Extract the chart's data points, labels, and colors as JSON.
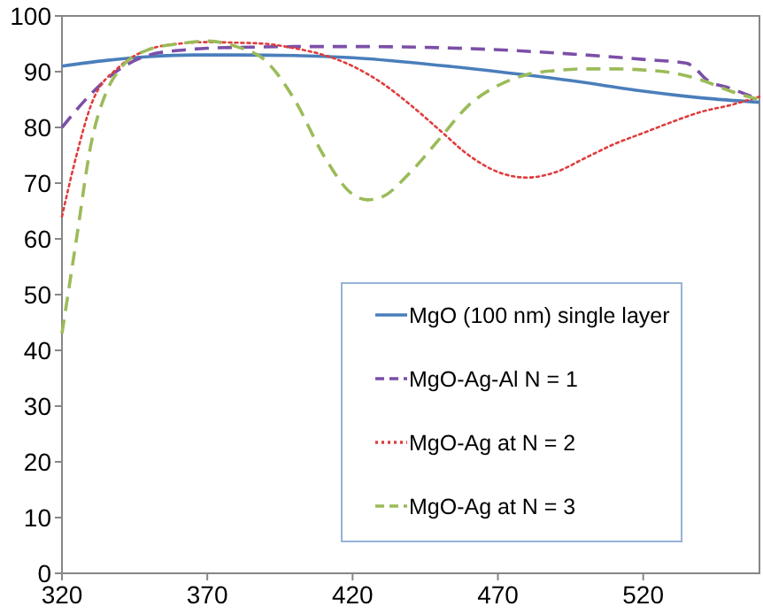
{
  "chart_data": {
    "type": "line",
    "xlim": [
      320,
      560
    ],
    "xticks": [
      320,
      370,
      420,
      470,
      520
    ],
    "ylim": [
      0,
      100
    ],
    "yticks": [
      0,
      10,
      20,
      30,
      40,
      50,
      60,
      70,
      80,
      90,
      100
    ],
    "grid": false,
    "legend": "bottom right",
    "marker": "none",
    "series": [
      {
        "name": "MgO (100 nm) single layer",
        "color": "#4a7ebb",
        "line_style": "solid",
        "x": [
          320,
          335,
          350,
          365,
          380,
          400,
          420,
          445,
          470,
          495,
          520,
          540,
          560
        ],
        "values": [
          91,
          92,
          92.7,
          93,
          93,
          92.9,
          92.5,
          91.4,
          90,
          88.4,
          86.5,
          85.3,
          84.5
        ]
      },
      {
        "name": "MgO-Ag-Al N = 1",
        "color": "#7b4fa8",
        "line_style": "dashed",
        "x": [
          320,
          330,
          340,
          350,
          360,
          370,
          385,
          400,
          425,
          450,
          475,
          500,
          520,
          535,
          538,
          542,
          550,
          560
        ],
        "values": [
          80,
          86,
          90.5,
          93,
          93.8,
          94.2,
          94.4,
          94.5,
          94.5,
          94.3,
          93.8,
          93,
          92.2,
          91.5,
          90.5,
          88.5,
          87,
          85
        ]
      },
      {
        "name": "MgO-Ag at N = 2",
        "color": "#e03c3c",
        "line_style": "dotted",
        "x": [
          320,
          325,
          330,
          340,
          350,
          360,
          370,
          380,
          390,
          400,
          410,
          420,
          430,
          440,
          450,
          460,
          470,
          480,
          490,
          500,
          510,
          520,
          530,
          540,
          550,
          560
        ],
        "values": [
          64,
          75,
          84,
          91,
          94,
          95,
          95.3,
          95.2,
          95,
          94.2,
          93,
          91,
          88,
          84,
          79.5,
          75,
          72,
          71,
          72,
          74.5,
          77,
          79,
          81,
          82.8,
          84,
          85.5
        ]
      },
      {
        "name": "MgO-Ag at N = 3",
        "color": "#9bbb59",
        "line_style": "dashed",
        "x": [
          320,
          325,
          330,
          335,
          340,
          350,
          360,
          370,
          380,
          390,
          400,
          410,
          420,
          425,
          430,
          440,
          450,
          460,
          470,
          480,
          490,
          500,
          510,
          520,
          530,
          540,
          550,
          560
        ],
        "values": [
          43,
          60,
          77,
          86,
          90.5,
          94,
          95,
          95.5,
          94.5,
          92,
          85,
          75,
          68,
          67,
          67.5,
          72,
          78,
          84,
          87.5,
          89.5,
          90.2,
          90.5,
          90.5,
          90.3,
          89.8,
          88.5,
          86.5,
          85
        ]
      }
    ]
  }
}
